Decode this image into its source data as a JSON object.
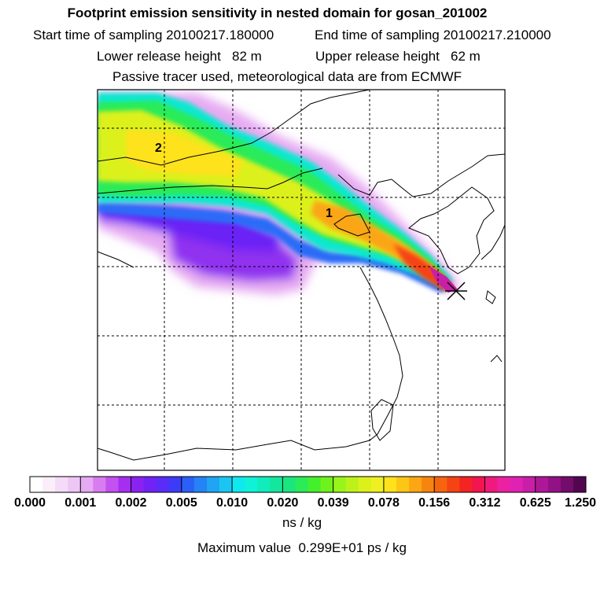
{
  "title": "Footprint emission sensitivity in nested domain for gosan_201002",
  "sampling": {
    "start": "Start time of sampling 20100217.180000",
    "end": "End time of sampling 20100217.210000"
  },
  "release": {
    "lower": "Lower release height   82 m",
    "upper": "Upper release height   62 m"
  },
  "tracer_note": "Passive tracer used, meteorological data are from ECMWF",
  "map": {
    "annotations": [
      "2",
      "1"
    ],
    "receptor_marker": "x-cross-icon"
  },
  "colorbar": {
    "tick_labels": [
      "0.000",
      "0.001",
      "0.002",
      "0.005",
      "0.010",
      "0.020",
      "0.039",
      "0.078",
      "0.156",
      "0.312",
      "0.625",
      "1.250"
    ],
    "colors": [
      "#ffffff",
      "#fbeefb",
      "#f4dcf8",
      "#eec6f6",
      "#e6aaf2",
      "#d87cf0",
      "#c251ef",
      "#a62ef0",
      "#8a22f2",
      "#7222f5",
      "#5a2cf7",
      "#3c3cf8",
      "#2a60f7",
      "#2583f5",
      "#20a4f3",
      "#1ac6f1",
      "#10e8f0",
      "#0ff2d8",
      "#10ecbc",
      "#14e69e",
      "#1ae680",
      "#2aeb58",
      "#44ef2c",
      "#6ff21b",
      "#98f41a",
      "#bcf21a",
      "#dcf01c",
      "#eef022",
      "#fde21c",
      "#fcc614",
      "#fba612",
      "#f88410",
      "#f6640f",
      "#f54313",
      "#f32424",
      "#f21550",
      "#f01a7e",
      "#ec20a2",
      "#e022b4",
      "#c81ea8",
      "#ae1898",
      "#921286",
      "#740c6c",
      "#520650"
    ],
    "units": "ns / kg"
  },
  "max_value": "Maximum value  0.299E+01 ps / kg"
}
